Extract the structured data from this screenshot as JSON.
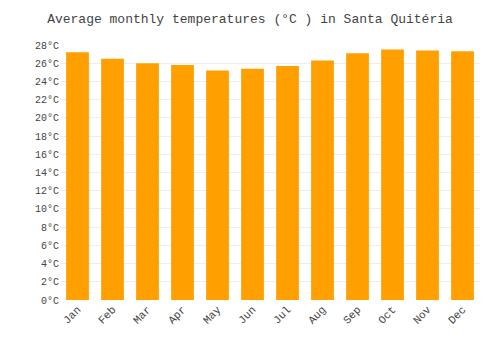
{
  "chart_data": {
    "type": "bar",
    "title": "Average monthly temperatures (°C ) in Santa Quitéria",
    "categories": [
      "Jan",
      "Feb",
      "Mar",
      "Apr",
      "May",
      "Jun",
      "Jul",
      "Aug",
      "Sep",
      "Oct",
      "Nov",
      "Dec"
    ],
    "values": [
      27.2,
      26.5,
      26.0,
      25.8,
      25.2,
      25.4,
      25.7,
      26.3,
      27.1,
      27.5,
      27.4,
      27.3
    ],
    "color": "#FFA000",
    "ylim": [
      0,
      28
    ],
    "yticks": [
      {
        "value": 0,
        "label": "0°C"
      },
      {
        "value": 2,
        "label": "2°C"
      },
      {
        "value": 4,
        "label": "4°C"
      },
      {
        "value": 6,
        "label": "6°C"
      },
      {
        "value": 8,
        "label": "8°C"
      },
      {
        "value": 10,
        "label": "10°C"
      },
      {
        "value": 12,
        "label": "12°C"
      },
      {
        "value": 14,
        "label": "14°C"
      },
      {
        "value": 16,
        "label": "16°C"
      },
      {
        "value": 18,
        "label": "18°C"
      },
      {
        "value": 20,
        "label": "20°C"
      },
      {
        "value": 22,
        "label": "22°C"
      },
      {
        "value": 24,
        "label": "24°C"
      },
      {
        "value": 26,
        "label": "26°C"
      },
      {
        "value": 28,
        "label": "28°C"
      }
    ],
    "grid": true
  }
}
